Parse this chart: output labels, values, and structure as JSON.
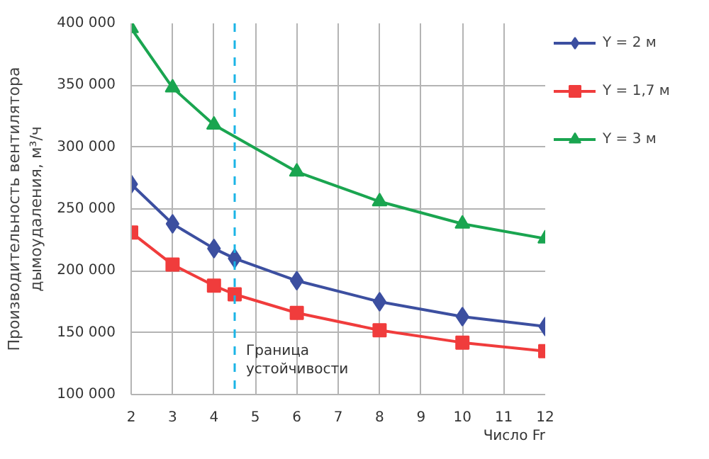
{
  "chart_data": {
    "type": "line",
    "xlabel": "Число Fr",
    "ylabel": "Производительность вентилятора\nдымоудаления, м³/ч",
    "xlim": [
      2,
      12
    ],
    "xticks": [
      2,
      3,
      4,
      5,
      6,
      7,
      8,
      9,
      10,
      11,
      12
    ],
    "ylim": [
      100000,
      400000
    ],
    "yticks": [
      {
        "value": 100000,
        "label": "100 000"
      },
      {
        "value": 150000,
        "label": "150 000"
      },
      {
        "value": 200000,
        "label": "200 000"
      },
      {
        "value": 250000,
        "label": "250 000"
      },
      {
        "value": 300000,
        "label": "300 000"
      },
      {
        "value": 350000,
        "label": "350 000"
      },
      {
        "value": 400000,
        "label": "400 000"
      }
    ],
    "grid": true,
    "legend": "right",
    "series": [
      {
        "name": "Y = 2 м",
        "color": "#3c4fa0",
        "marker": "diamond",
        "x": [
          2,
          3,
          4,
          4.5,
          6,
          8,
          10,
          12
        ],
        "values": [
          270000,
          238000,
          218000,
          210000,
          192000,
          175000,
          163000,
          155000
        ]
      },
      {
        "name": "Y = 1,7 м",
        "color": "#f03c3c",
        "marker": "square",
        "x": [
          2,
          3,
          4,
          4.5,
          6,
          8,
          10,
          12
        ],
        "values": [
          231000,
          205000,
          188000,
          181000,
          166000,
          152000,
          142000,
          135000
        ]
      },
      {
        "name": "Y = 3 м",
        "color": "#1aa550",
        "marker": "triangle",
        "x": [
          2,
          3,
          4,
          6,
          8,
          10,
          12
        ],
        "values": [
          396000,
          348000,
          318000,
          280000,
          256000,
          238000,
          226000
        ]
      }
    ],
    "ref_lines": [
      {
        "axis": "x",
        "value": 4.5,
        "label": "Граница\nустойчивости",
        "color": "#1ab4e6",
        "line_style": "dashed"
      }
    ]
  }
}
